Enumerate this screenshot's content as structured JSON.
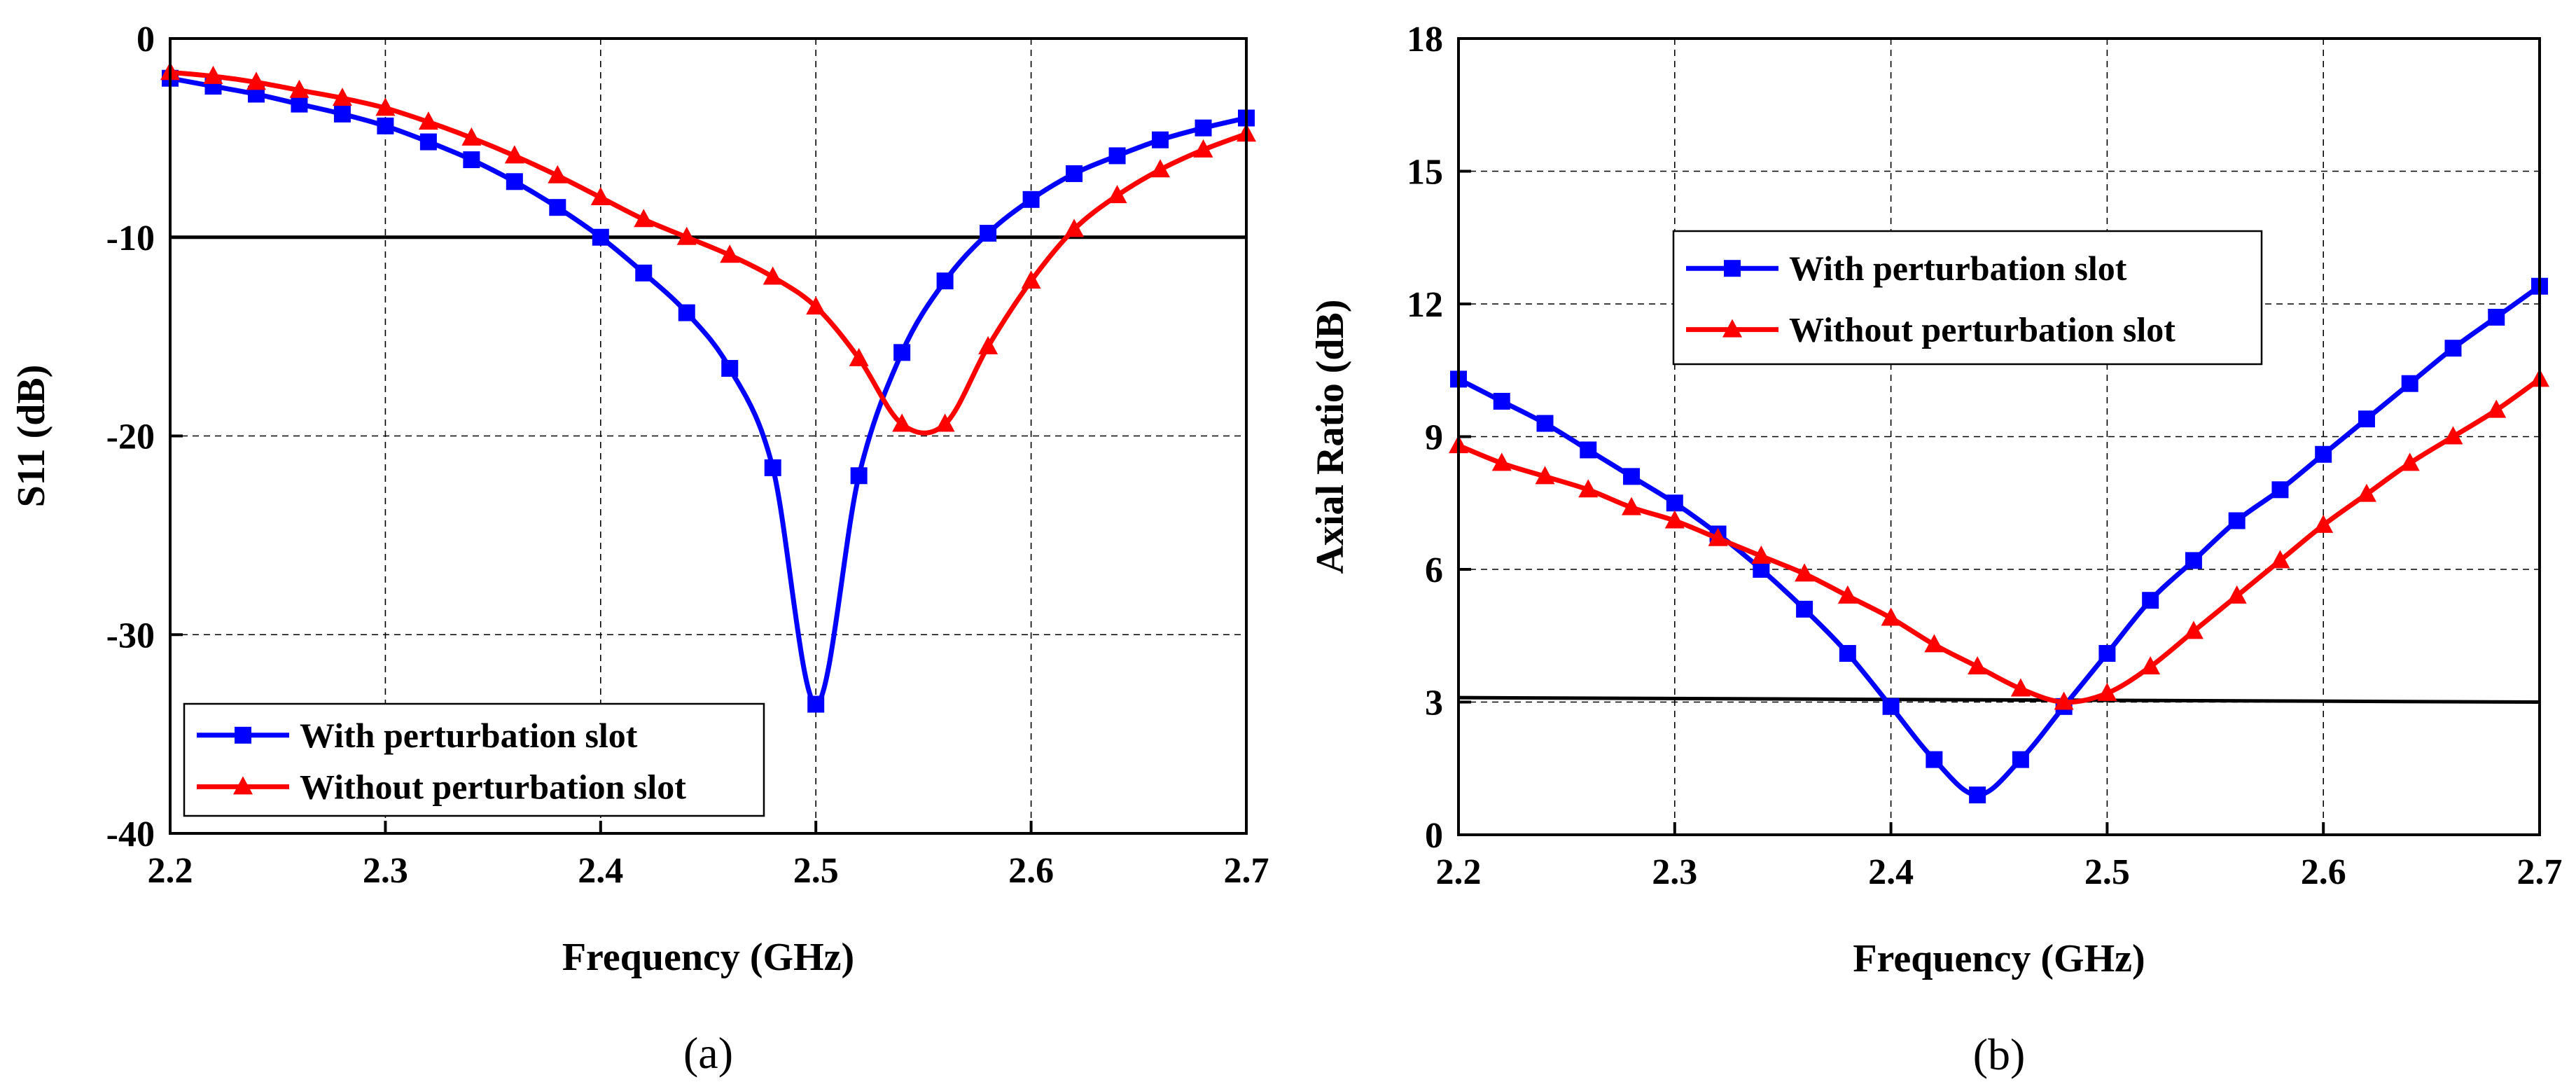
{
  "chart_data": [
    {
      "type": "line",
      "caption": "(a)",
      "xlabel": "Frequency (GHz)",
      "ylabel": "S11 (dB)",
      "xlim": [
        2.2,
        2.7
      ],
      "ylim": [
        -40,
        0
      ],
      "xticks": [
        "2.2",
        "2.3",
        "2.4",
        "2.5",
        "2.6",
        "2.7"
      ],
      "yticks": [
        "0",
        "-10",
        "-20",
        "-30",
        "-40"
      ],
      "grid": true,
      "legend_position": "bottom-left",
      "reference_line": {
        "y_start": -10,
        "y_end": -10
      },
      "series": [
        {
          "name": "With perturbation slot",
          "color": "#0000ff",
          "marker": "square",
          "x": [
            2.2,
            2.22,
            2.24,
            2.26,
            2.28,
            2.3,
            2.32,
            2.34,
            2.36,
            2.38,
            2.4,
            2.42,
            2.44,
            2.46,
            2.48,
            2.5,
            2.52,
            2.54,
            2.56,
            2.58,
            2.6,
            2.62,
            2.64,
            2.66,
            2.68,
            2.7
          ],
          "y": [
            -2.0,
            -2.4,
            -2.8,
            -3.3,
            -3.8,
            -4.4,
            -5.2,
            -6.1,
            -7.2,
            -8.5,
            -10.0,
            -11.8,
            -13.8,
            -16.6,
            -21.6,
            -33.5,
            -22.0,
            -15.8,
            -12.2,
            -9.8,
            -8.1,
            -6.8,
            -5.9,
            -5.1,
            -4.5,
            -4.0
          ]
        },
        {
          "name": "Without perturbation slot",
          "color": "#ff0000",
          "marker": "triangle",
          "x": [
            2.2,
            2.22,
            2.24,
            2.26,
            2.28,
            2.3,
            2.32,
            2.34,
            2.36,
            2.38,
            2.4,
            2.42,
            2.44,
            2.46,
            2.48,
            2.5,
            2.52,
            2.54,
            2.56,
            2.58,
            2.6,
            2.62,
            2.64,
            2.66,
            2.68,
            2.7
          ],
          "y": [
            -1.7,
            -1.9,
            -2.2,
            -2.6,
            -3.0,
            -3.5,
            -4.2,
            -5.0,
            -5.9,
            -6.9,
            -8.0,
            -9.1,
            -10.0,
            -10.9,
            -12.0,
            -13.5,
            -16.1,
            -19.4,
            -19.4,
            -15.5,
            -12.2,
            -9.6,
            -7.9,
            -6.6,
            -5.6,
            -4.8
          ]
        }
      ]
    },
    {
      "type": "line",
      "caption": "(b)",
      "xlabel": "Frequency (GHz)",
      "ylabel": "Axial Ratio (dB)",
      "xlim": [
        2.2,
        2.7
      ],
      "ylim": [
        0,
        18
      ],
      "xticks": [
        "2.2",
        "2.3",
        "2.4",
        "2.5",
        "2.6",
        "2.7"
      ],
      "yticks": [
        "0",
        "3",
        "6",
        "9",
        "12",
        "15",
        "18"
      ],
      "grid": true,
      "legend_position": "top-center",
      "reference_line": {
        "y_start": 3.1,
        "y_end": 3.0
      },
      "series": [
        {
          "name": "With perturbation slot",
          "color": "#0000ff",
          "marker": "square",
          "x": [
            2.2,
            2.22,
            2.24,
            2.26,
            2.28,
            2.3,
            2.32,
            2.34,
            2.36,
            2.38,
            2.4,
            2.42,
            2.44,
            2.46,
            2.48,
            2.5,
            2.52,
            2.54,
            2.56,
            2.58,
            2.6,
            2.62,
            2.64,
            2.66,
            2.68,
            2.7
          ],
          "y": [
            10.3,
            9.8,
            9.3,
            8.7,
            8.1,
            7.5,
            6.8,
            6.0,
            5.1,
            4.1,
            2.9,
            1.7,
            0.9,
            1.7,
            2.9,
            4.1,
            5.3,
            6.2,
            7.1,
            7.8,
            8.6,
            9.4,
            10.2,
            11.0,
            11.7,
            12.4
          ]
        },
        {
          "name": "Without perturbation slot",
          "color": "#ff0000",
          "marker": "triangle",
          "x": [
            2.2,
            2.22,
            2.24,
            2.26,
            2.28,
            2.3,
            2.32,
            2.34,
            2.36,
            2.38,
            2.4,
            2.42,
            2.44,
            2.46,
            2.48,
            2.5,
            2.52,
            2.54,
            2.56,
            2.58,
            2.6,
            2.62,
            2.64,
            2.66,
            2.68,
            2.7
          ],
          "y": [
            8.8,
            8.4,
            8.1,
            7.8,
            7.4,
            7.1,
            6.7,
            6.3,
            5.9,
            5.4,
            4.9,
            4.3,
            3.8,
            3.3,
            3.0,
            3.2,
            3.8,
            4.6,
            5.4,
            6.2,
            7.0,
            7.7,
            8.4,
            9.0,
            9.6,
            10.3
          ]
        }
      ]
    }
  ]
}
